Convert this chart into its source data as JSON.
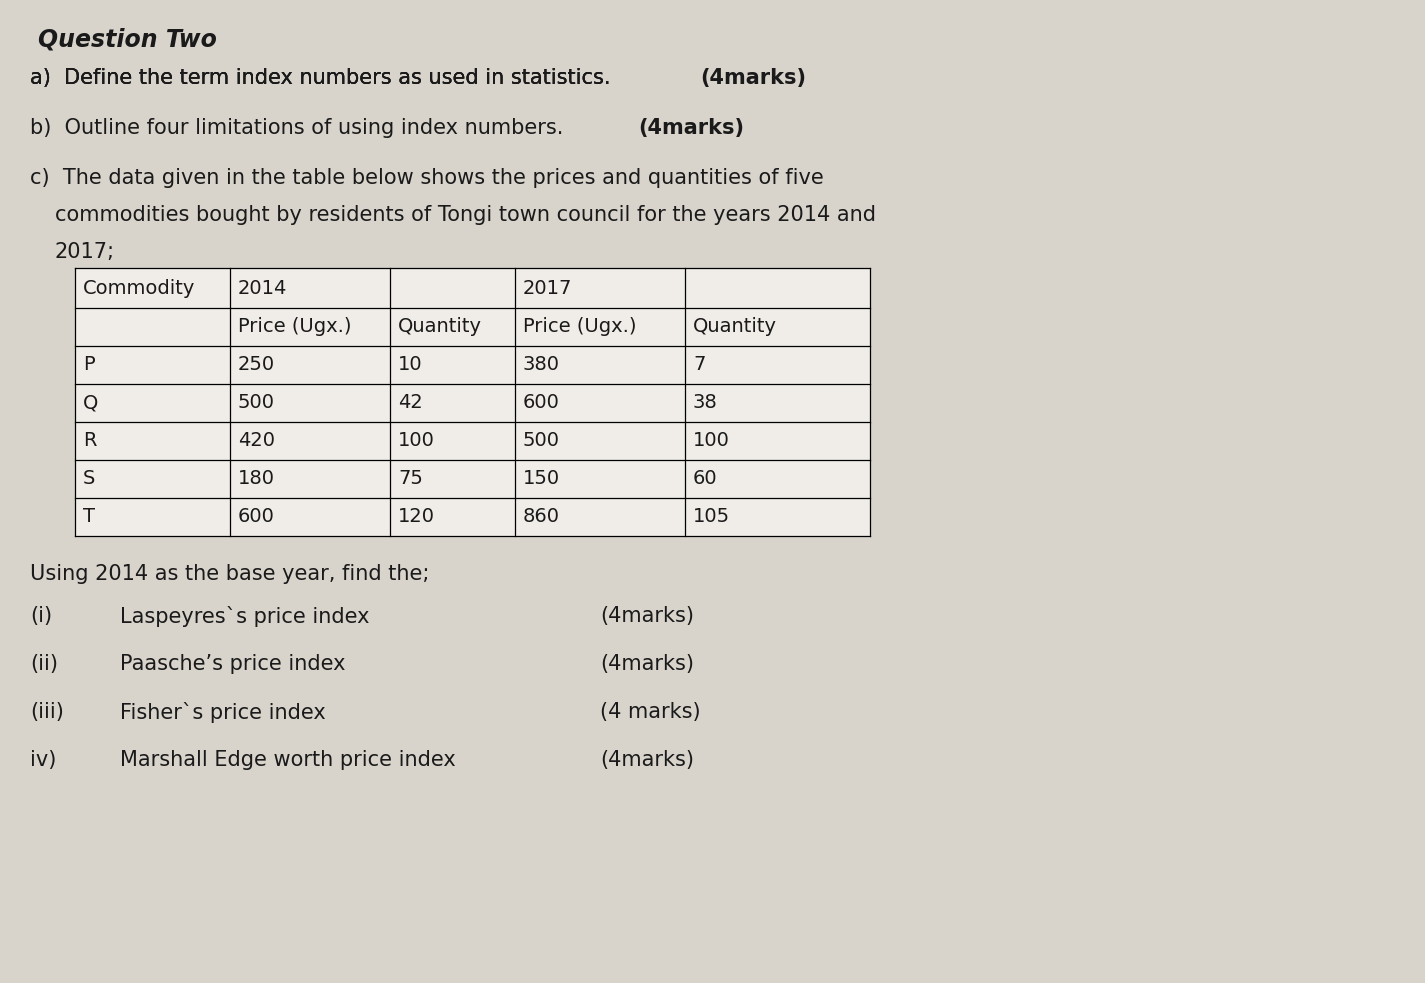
{
  "title": "Question Two",
  "bg_color": "#d8d4cc",
  "text_color": "#1a1a1a",
  "table_data": [
    [
      "P",
      "250",
      "10",
      "380",
      "7"
    ],
    [
      "Q",
      "500",
      "42",
      "600",
      "38"
    ],
    [
      "R",
      "420",
      "100",
      "500",
      "100"
    ],
    [
      "S",
      "180",
      "75",
      "150",
      "60"
    ],
    [
      "T",
      "600",
      "120",
      "860",
      "105"
    ]
  ],
  "sub_questions": [
    [
      "(i)",
      "Laspeyres`s price index",
      "(4marks)"
    ],
    [
      "(ii)",
      "Paasche’s price index",
      "(4marks)"
    ],
    [
      "(iii)",
      "Fisher`s price index",
      "(4 marks)"
    ],
    [
      "iv)",
      "Marshall Edge worth price index",
      "(4marks)"
    ]
  ],
  "fs_title": 17,
  "fs_body": 15,
  "fs_table": 14
}
